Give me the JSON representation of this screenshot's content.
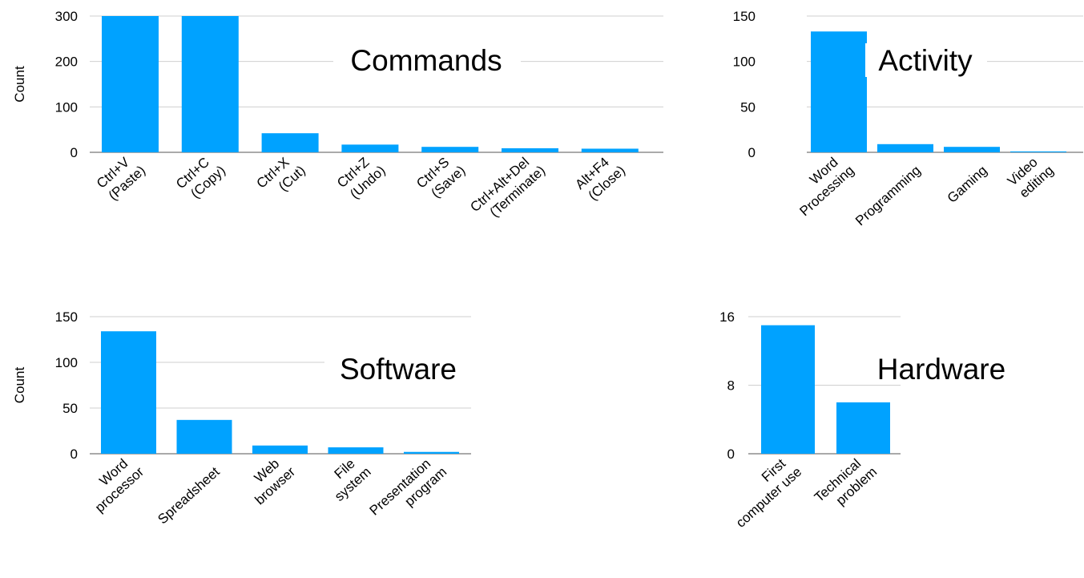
{
  "colors": {
    "bar": "#00A2FF"
  },
  "chart_data": [
    {
      "type": "bar",
      "title": "Commands",
      "ylabel": "Count",
      "ylim": [
        0,
        300
      ],
      "yticks": [
        "0",
        "100",
        "200",
        "300"
      ],
      "categories": [
        [
          "Ctrl+V",
          "(Paste)"
        ],
        [
          "Ctrl+C",
          "(Copy)"
        ],
        [
          "Ctrl+X",
          "(Cut)"
        ],
        [
          "Ctrl+Z",
          "(Undo)"
        ],
        [
          "Ctrl+S",
          "(Save)"
        ],
        [
          "Ctrl+Alt+Del",
          "(Terminate)"
        ],
        [
          "Alt+F4",
          "(Close)"
        ]
      ],
      "values": [
        300,
        300,
        42,
        17,
        12,
        9,
        8
      ]
    },
    {
      "type": "bar",
      "title": "Activity",
      "ylabel": "",
      "ylim": [
        0,
        150
      ],
      "yticks": [
        "0",
        "50",
        "100",
        "150"
      ],
      "categories": [
        [
          "Word",
          "Processing"
        ],
        [
          "Programming"
        ],
        [
          "Gaming"
        ],
        [
          "Video",
          "editing"
        ]
      ],
      "values": [
        133,
        9,
        6,
        1
      ]
    },
    {
      "type": "bar",
      "title": "Software",
      "ylabel": "Count",
      "ylim": [
        0,
        150
      ],
      "yticks": [
        "0",
        "50",
        "100",
        "150"
      ],
      "categories": [
        [
          "Word",
          "processor"
        ],
        [
          "Spreadsheet"
        ],
        [
          "Web",
          "browser"
        ],
        [
          "File",
          "system"
        ],
        [
          "Presentation",
          "program"
        ]
      ],
      "values": [
        134,
        37,
        9,
        7,
        2
      ]
    },
    {
      "type": "bar",
      "title": "Hardware",
      "ylabel": "",
      "ylim": [
        0,
        16
      ],
      "yticks": [
        "0",
        "8",
        "16"
      ],
      "categories": [
        [
          "First",
          "computer use"
        ],
        [
          "Technical",
          "problem"
        ]
      ],
      "values": [
        15,
        6
      ]
    }
  ]
}
